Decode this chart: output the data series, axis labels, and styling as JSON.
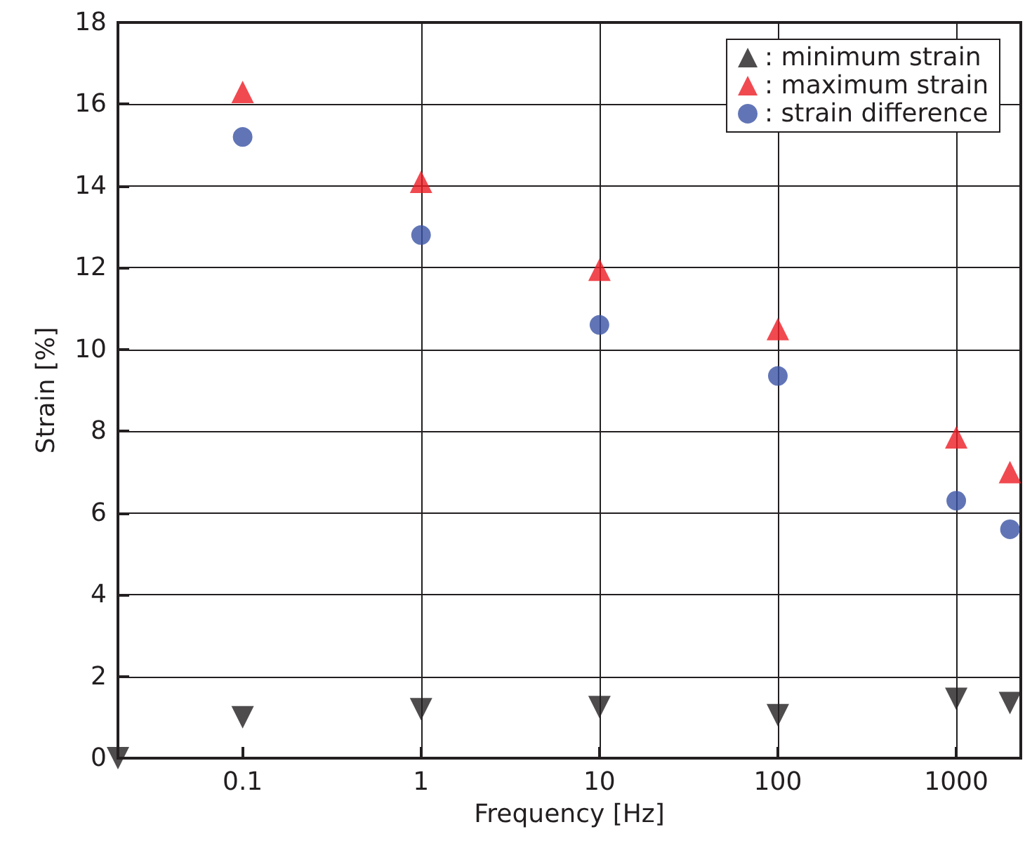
{
  "chart_data": {
    "type": "scatter",
    "xlabel": "Frequency [Hz]",
    "ylabel": "Strain [%]",
    "log": "x",
    "xlim": [
      0.02,
      2300
    ],
    "xticks": [
      0.1,
      1,
      10,
      100,
      1000
    ],
    "ylim": [
      0,
      18
    ],
    "yticks": [
      0,
      2,
      4,
      6,
      8,
      10,
      12,
      14,
      16,
      18
    ],
    "grid": true,
    "legend": "top right",
    "series": [
      {
        "name": ": minimum strain",
        "color": "#231f20",
        "marker": "triangle-down",
        "x": [
          0.02,
          0.1,
          1,
          10,
          100,
          1000,
          2000
        ],
        "values": [
          0,
          1.0,
          1.2,
          1.25,
          1.05,
          1.45,
          1.35
        ]
      },
      {
        "name": ": maximum strain",
        "color": "#ed1c24",
        "marker": "triangle",
        "x": [
          0.1,
          1,
          10,
          100,
          1000,
          2000
        ],
        "values": [
          16.3,
          14.1,
          11.95,
          10.5,
          7.85,
          7.0
        ]
      },
      {
        "name": ": strain difference",
        "color": "#3953a4",
        "marker": "circle",
        "x": [
          0.1,
          1,
          10,
          100,
          1000,
          2000
        ],
        "values": [
          15.2,
          12.8,
          10.6,
          9.35,
          6.3,
          5.6
        ]
      }
    ]
  }
}
